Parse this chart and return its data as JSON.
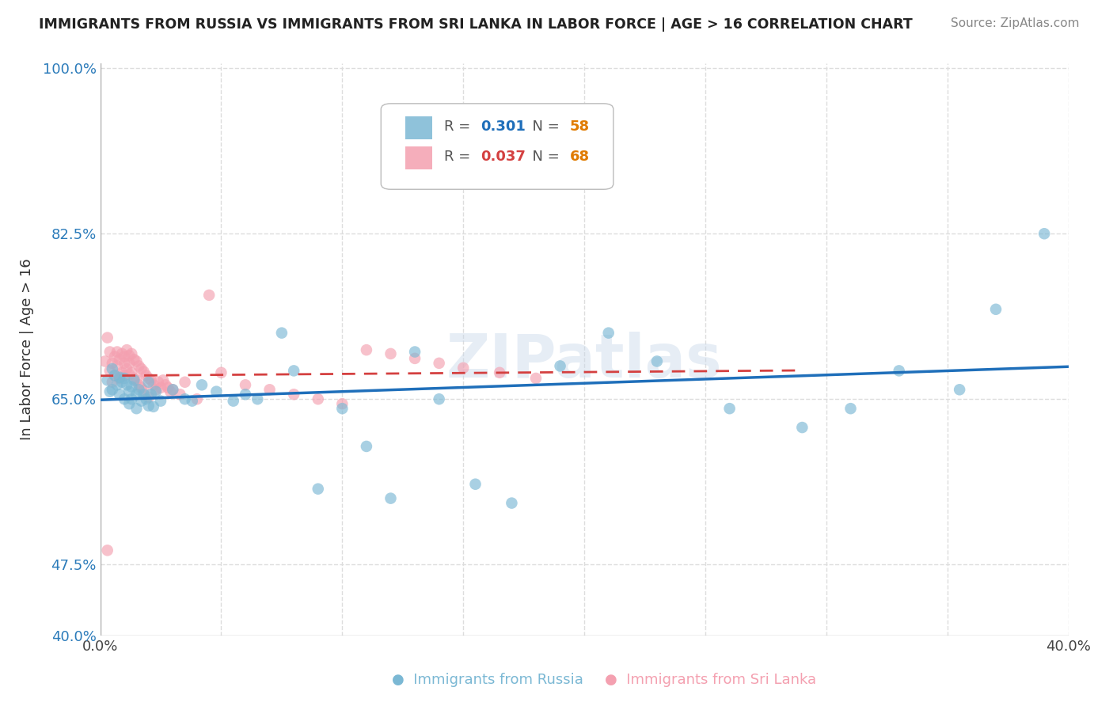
{
  "title": "IMMIGRANTS FROM RUSSIA VS IMMIGRANTS FROM SRI LANKA IN LABOR FORCE | AGE > 16 CORRELATION CHART",
  "source": "Source: ZipAtlas.com",
  "ylabel": "In Labor Force | Age > 16",
  "xlim": [
    0.0,
    0.4
  ],
  "ylim": [
    0.4,
    1.005
  ],
  "russia_color": "#7bb8d4",
  "srilanka_color": "#f4a0b0",
  "russia_line_color": "#1f6fba",
  "srilanka_line_color": "#d44040",
  "R_russia": 0.301,
  "N_russia": 58,
  "R_srilanka": 0.037,
  "N_srilanka": 68,
  "watermark": "ZIPatlas",
  "background_color": "#ffffff",
  "grid_color": "#dddddd",
  "ytick_color": "#2b7bba",
  "title_color": "#222222",
  "source_color": "#888888"
}
